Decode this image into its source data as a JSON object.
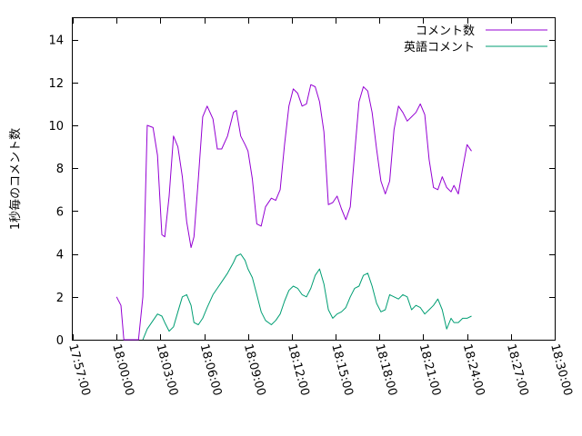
{
  "chart_data": {
    "type": "line",
    "ylabel": "1秒毎のコメント数",
    "xlabel": "",
    "ylim": [
      0,
      15
    ],
    "y_ticks": [
      0,
      2,
      4,
      6,
      8,
      10,
      12,
      14
    ],
    "y_tick_labels": [
      "0",
      "2",
      "4",
      "6",
      "8",
      "10",
      "12",
      "14"
    ],
    "xlim_minutes": [
      0,
      33
    ],
    "x_ticks_minutes": [
      0,
      3,
      6,
      9,
      12,
      15,
      18,
      21,
      24,
      27,
      30,
      33
    ],
    "x_tick_labels": [
      "17:57:00",
      "18:00:00",
      "18:03:00",
      "18:06:00",
      "18:09:00",
      "18:12:00",
      "18:15:00",
      "18:18:00",
      "18:21:00",
      "18:24:00",
      "18:27:00",
      "18:30:00"
    ],
    "legend_position": "top-right",
    "grid": false,
    "series": [
      {
        "name": "コメント数",
        "color": "#9400d3",
        "x": [
          3.0,
          3.3,
          3.5,
          4.0,
          4.1,
          4.25,
          4.5,
          4.8,
          5.1,
          5.5,
          5.8,
          6.1,
          6.3,
          6.6,
          6.9,
          7.2,
          7.5,
          7.8,
          8.1,
          8.3,
          8.6,
          8.9,
          9.2,
          9.6,
          9.9,
          10.2,
          10.6,
          11.0,
          11.2,
          11.5,
          11.8,
          12.0,
          12.3,
          12.6,
          12.9,
          13.2,
          13.6,
          13.9,
          14.2,
          14.5,
          14.8,
          15.1,
          15.4,
          15.7,
          16.0,
          16.3,
          16.6,
          16.9,
          17.2,
          17.5,
          17.8,
          18.1,
          18.4,
          18.7,
          19.0,
          19.3,
          19.6,
          19.9,
          20.2,
          20.5,
          20.8,
          21.1,
          21.4,
          21.7,
          22.0,
          22.3,
          22.6,
          22.9,
          23.2,
          23.5,
          23.8,
          24.1,
          24.4,
          24.7,
          25.0,
          25.3,
          25.6,
          25.9,
          26.1,
          26.4,
          26.7,
          27.0,
          27.3
        ],
        "y": [
          2.0,
          1.6,
          0.0,
          0.0,
          0.0,
          0.0,
          0.0,
          2.0,
          10.0,
          9.9,
          8.6,
          4.9,
          4.8,
          6.7,
          9.5,
          9.0,
          7.6,
          5.5,
          4.3,
          4.8,
          7.5,
          10.4,
          10.9,
          10.3,
          8.9,
          8.9,
          9.5,
          10.6,
          10.7,
          9.5,
          9.1,
          8.8,
          7.5,
          5.4,
          5.3,
          6.2,
          6.6,
          6.5,
          7.0,
          9.1,
          10.9,
          11.7,
          11.5,
          10.9,
          11.0,
          11.9,
          11.8,
          11.1,
          9.7,
          6.3,
          6.4,
          6.7,
          6.1,
          5.6,
          6.2,
          8.7,
          11.1,
          11.8,
          11.6,
          10.6,
          8.9,
          7.4,
          6.8,
          7.4,
          9.8,
          10.9,
          10.6,
          10.2,
          10.4,
          10.6,
          11.0,
          10.5,
          8.4,
          7.1,
          7.0,
          7.6,
          7.1,
          6.9,
          7.2,
          6.8,
          8.0,
          9.1,
          8.8
        ]
      },
      {
        "name": "英語コメント",
        "color": "#009e73",
        "x": [
          4.8,
          5.1,
          5.5,
          5.8,
          6.1,
          6.3,
          6.6,
          6.9,
          7.2,
          7.5,
          7.8,
          8.1,
          8.3,
          8.6,
          8.9,
          9.2,
          9.6,
          9.9,
          10.2,
          10.6,
          11.0,
          11.2,
          11.5,
          11.8,
          12.0,
          12.3,
          12.6,
          12.9,
          13.2,
          13.6,
          13.9,
          14.2,
          14.5,
          14.8,
          15.1,
          15.4,
          15.7,
          16.0,
          16.3,
          16.6,
          16.9,
          17.2,
          17.5,
          17.8,
          18.1,
          18.4,
          18.7,
          19.0,
          19.3,
          19.6,
          19.9,
          20.2,
          20.5,
          20.8,
          21.1,
          21.4,
          21.7,
          22.0,
          22.3,
          22.6,
          22.9,
          23.2,
          23.5,
          23.8,
          24.1,
          24.4,
          24.7,
          25.0,
          25.3,
          25.6,
          25.9,
          26.1,
          26.4,
          26.7,
          27.0,
          27.3
        ],
        "y": [
          0.0,
          0.5,
          0.9,
          1.2,
          1.1,
          0.8,
          0.4,
          0.6,
          1.3,
          2.0,
          2.1,
          1.6,
          0.8,
          0.7,
          1.0,
          1.5,
          2.1,
          2.4,
          2.7,
          3.1,
          3.6,
          3.9,
          4.0,
          3.7,
          3.3,
          2.9,
          2.1,
          1.3,
          0.9,
          0.7,
          0.9,
          1.2,
          1.8,
          2.3,
          2.5,
          2.4,
          2.1,
          2.0,
          2.4,
          3.0,
          3.3,
          2.6,
          1.4,
          1.0,
          1.2,
          1.3,
          1.5,
          2.0,
          2.4,
          2.5,
          3.0,
          3.1,
          2.5,
          1.7,
          1.3,
          1.4,
          2.1,
          2.0,
          1.9,
          2.1,
          2.0,
          1.4,
          1.6,
          1.5,
          1.2,
          1.4,
          1.6,
          1.9,
          1.4,
          0.5,
          1.0,
          0.8,
          0.8,
          1.0,
          1.0,
          1.1
        ]
      }
    ]
  }
}
